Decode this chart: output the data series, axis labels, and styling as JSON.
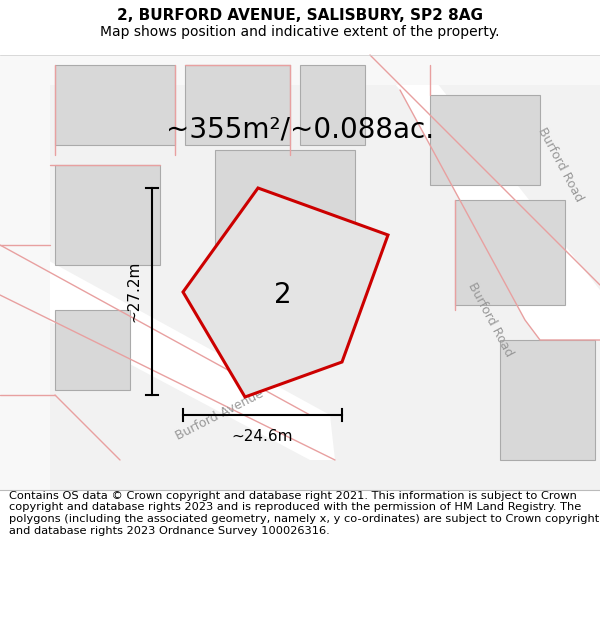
{
  "title": "2, BURFORD AVENUE, SALISBURY, SP2 8AG",
  "subtitle": "Map shows position and indicative extent of the property.",
  "area_label": "~355m²/~0.088ac.",
  "plot_number": "2",
  "dim_width": "~24.6m",
  "dim_height": "~27.2m",
  "bg_color": "#f0f0f0",
  "road_fill": "#ffffff",
  "building_fill": "#d8d8d8",
  "building_stroke": "#aaaaaa",
  "red_line_color": "#cc0000",
  "red_road_color": "#e8a0a0",
  "plot_fill": "#e4e4e4",
  "footer_text": "Contains OS data © Crown copyright and database right 2021. This information is subject to Crown copyright and database rights 2023 and is reproduced with the permission of HM Land Registry. The polygons (including the associated geometry, namely x, y co-ordinates) are subject to Crown copyright and database rights 2023 Ordnance Survey 100026316.",
  "title_fontsize": 11,
  "subtitle_fontsize": 10,
  "footer_fontsize": 8.2,
  "area_fontsize": 20,
  "plot_num_fontsize": 20,
  "dim_fontsize": 11,
  "road_label_fontsize": 9,
  "road_label_color": "#999999"
}
